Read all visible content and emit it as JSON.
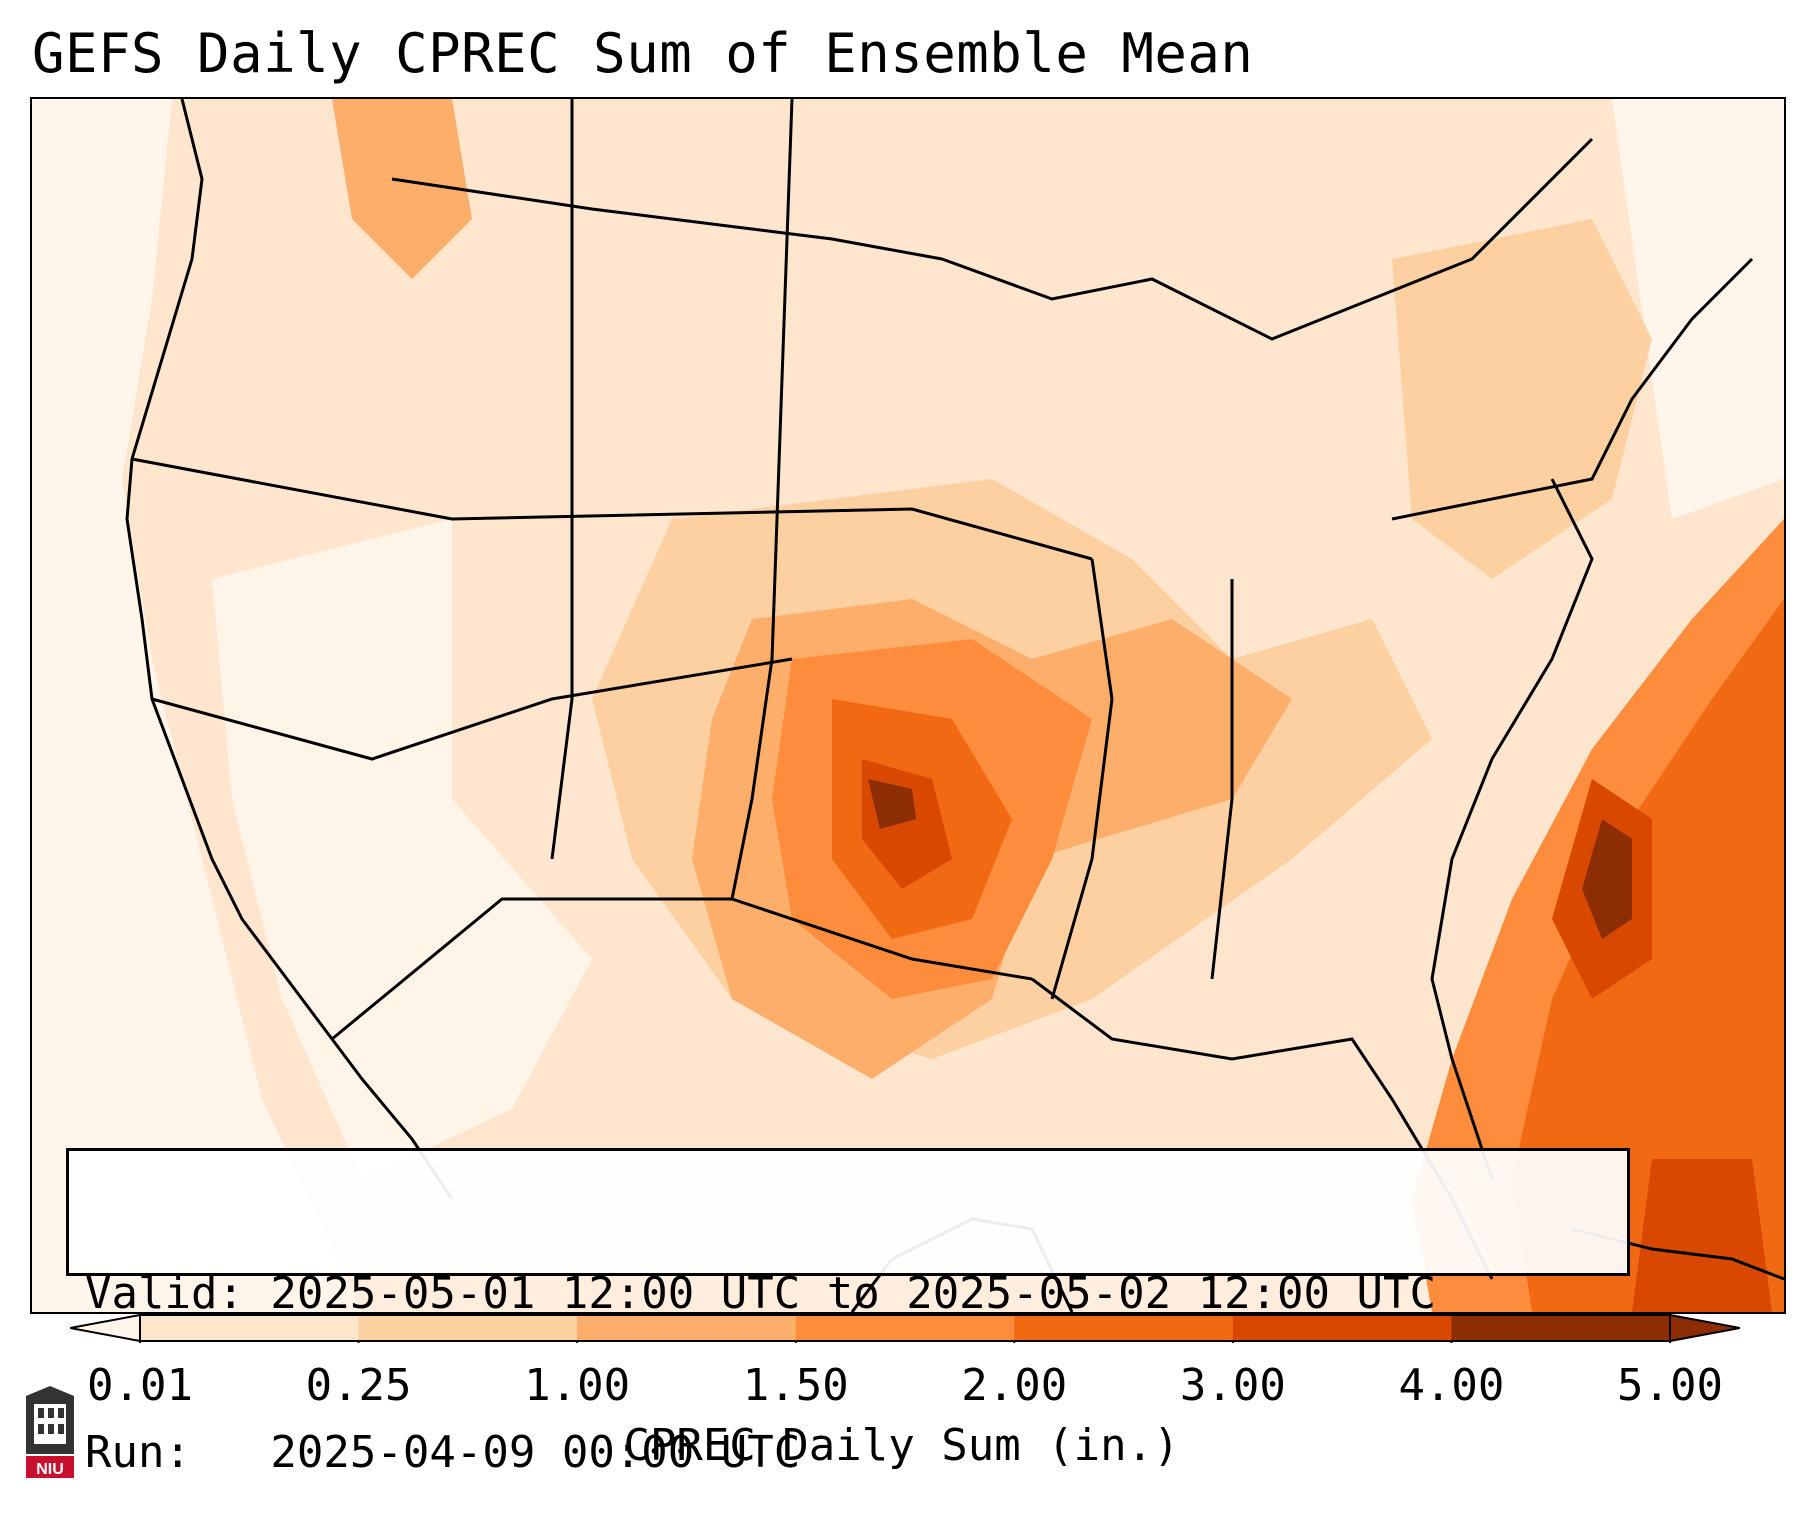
{
  "title": "GEFS Daily CPREC Sum of Ensemble Mean",
  "info": {
    "valid_line": "Valid: 2025-05-01 12:00 UTC to 2025-05-02 12:00 UTC",
    "run_line": "Run:   2025-04-09 00:00 UTC"
  },
  "colorbar": {
    "label": "CPREC Daily Sum (in.)",
    "ticks": [
      "0.01",
      "0.25",
      "1.00",
      "1.50",
      "2.00",
      "3.00",
      "4.00",
      "5.00"
    ],
    "colors": [
      "#fff5eb",
      "#fee6ce",
      "#fdd0a2",
      "#fdae6b",
      "#fd8d3c",
      "#f16913",
      "#d94801",
      "#8c2d04"
    ],
    "extend": "both"
  },
  "logo": {
    "text": "NIU",
    "colors": {
      "dark": "#333333",
      "red": "#c8102e"
    }
  },
  "palette": {
    "background": "#fff8f0",
    "land_outline": "#000000"
  }
}
